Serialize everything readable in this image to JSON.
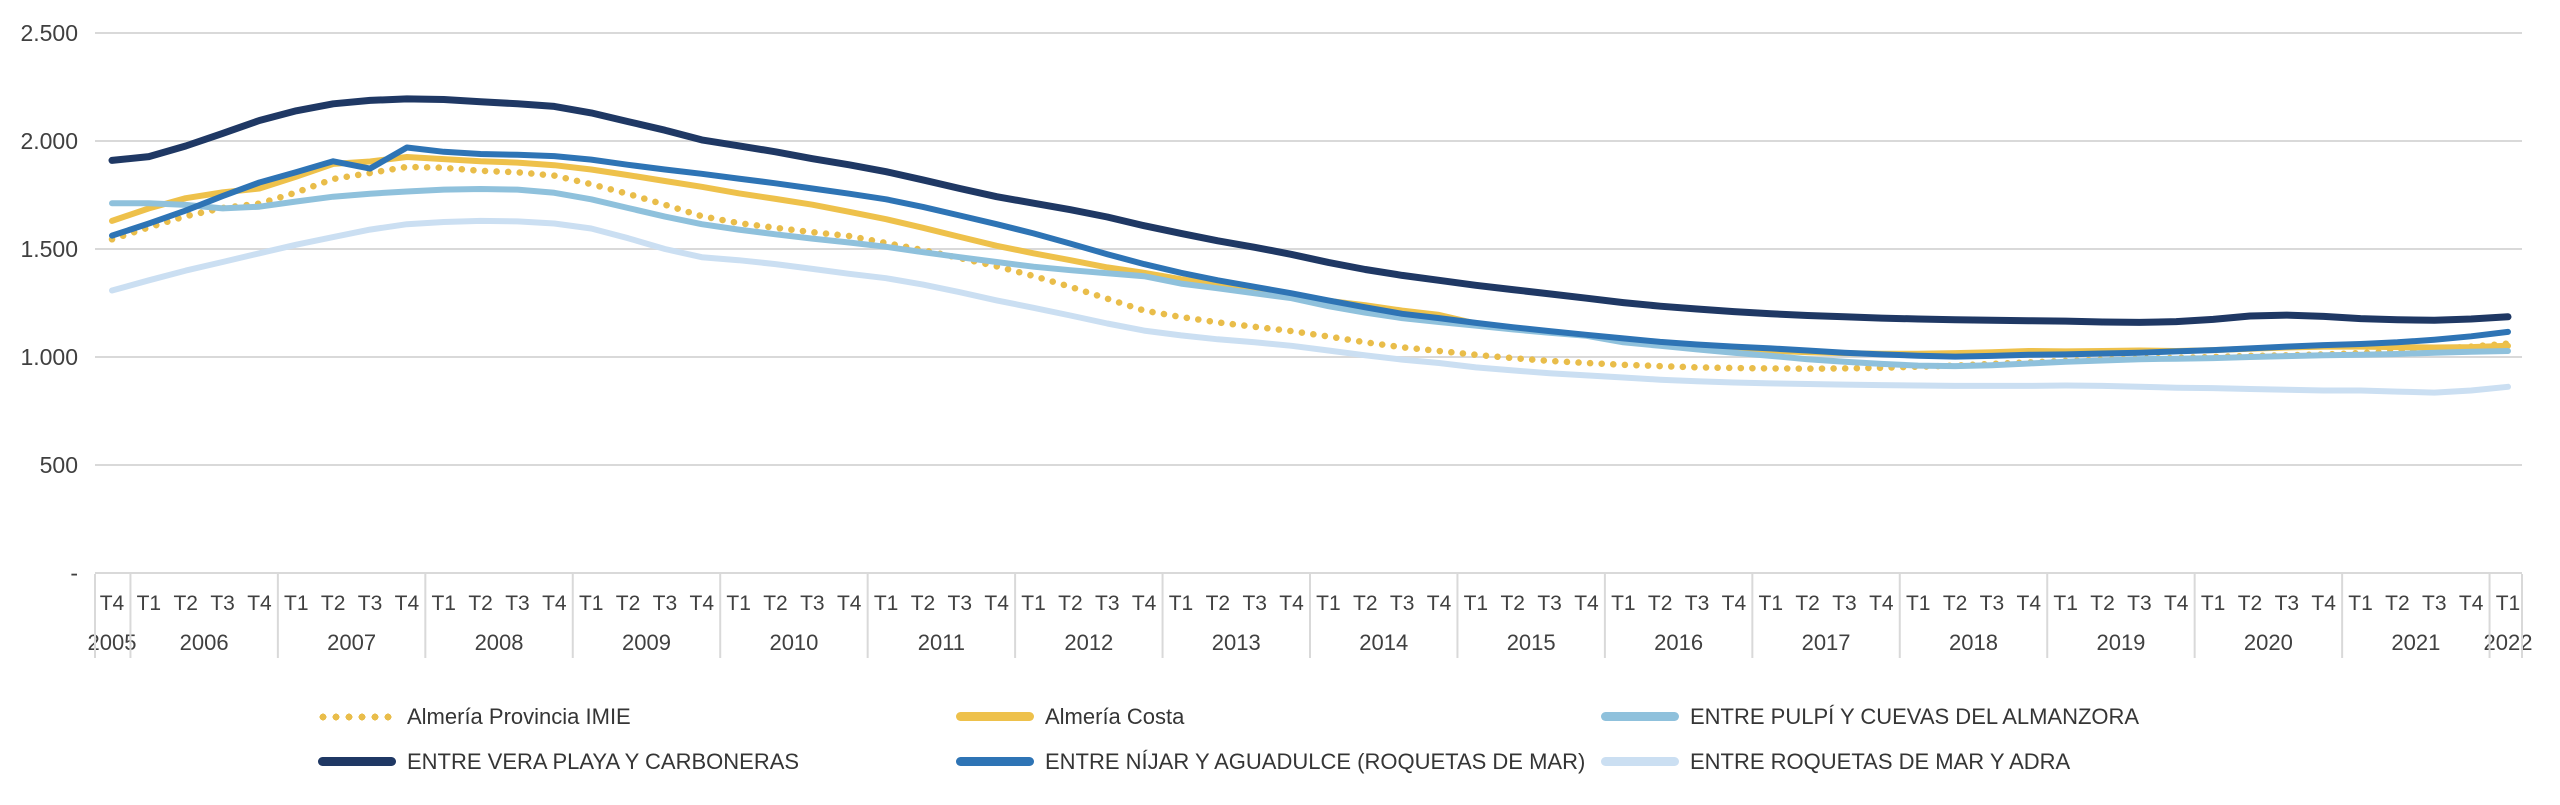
{
  "chart_data": {
    "type": "line",
    "title": "",
    "xlabel": "",
    "ylabel": "",
    "ylim": [
      0,
      2500
    ],
    "grid": true,
    "legend_position": "bottom",
    "yticks": [
      {
        "value": 2500,
        "label": "2.500"
      },
      {
        "value": 2000,
        "label": "2.000"
      },
      {
        "value": 1500,
        "label": "1.500"
      },
      {
        "value": 1000,
        "label": "1.000"
      },
      {
        "value": 500,
        "label": "500"
      },
      {
        "value": 0,
        "label": "-"
      }
    ],
    "x_quarters": [
      "T4",
      "T1",
      "T2",
      "T3",
      "T4",
      "T1",
      "T2",
      "T3",
      "T4",
      "T1",
      "T2",
      "T3",
      "T4",
      "T1",
      "T2",
      "T3",
      "T4",
      "T1",
      "T2",
      "T3",
      "T4",
      "T1",
      "T2",
      "T3",
      "T4",
      "T1",
      "T2",
      "T3",
      "T4",
      "T1",
      "T2",
      "T3",
      "T4",
      "T1",
      "T2",
      "T3",
      "T4",
      "T1",
      "T2",
      "T3",
      "T4",
      "T1",
      "T2",
      "T3",
      "T4",
      "T1",
      "T2",
      "T3",
      "T4",
      "T1",
      "T2",
      "T3",
      "T4",
      "T1",
      "T2",
      "T3",
      "T4",
      "T1",
      "T2",
      "T3",
      "T4",
      "T1",
      "T2",
      "T3",
      "T4",
      "T1"
    ],
    "x_years": [
      {
        "label": "2005",
        "span": 1
      },
      {
        "label": "2006",
        "span": 4
      },
      {
        "label": "2007",
        "span": 4
      },
      {
        "label": "2008",
        "span": 4
      },
      {
        "label": "2009",
        "span": 4
      },
      {
        "label": "2010",
        "span": 4
      },
      {
        "label": "2011",
        "span": 4
      },
      {
        "label": "2012",
        "span": 4
      },
      {
        "label": "2013",
        "span": 4
      },
      {
        "label": "2014",
        "span": 4
      },
      {
        "label": "2015",
        "span": 4
      },
      {
        "label": "2016",
        "span": 4
      },
      {
        "label": "2017",
        "span": 4
      },
      {
        "label": "2018",
        "span": 4
      },
      {
        "label": "2019",
        "span": 4
      },
      {
        "label": "2020",
        "span": 4
      },
      {
        "label": "2021",
        "span": 4
      },
      {
        "label": "2022",
        "span": 1
      }
    ],
    "series": [
      {
        "name": "Almería Provincia IMIE",
        "color": "#e9bd4a",
        "style": "dotted",
        "values": [
          1545,
          1600,
          1652,
          1690,
          1710,
          1762,
          1824,
          1852,
          1880,
          1876,
          1862,
          1855,
          1840,
          1800,
          1755,
          1705,
          1652,
          1620,
          1598,
          1578,
          1560,
          1528,
          1495,
          1458,
          1420,
          1375,
          1325,
          1270,
          1215,
          1185,
          1160,
          1140,
          1120,
          1095,
          1068,
          1045,
          1028,
          1010,
          995,
          982,
          972,
          964,
          958,
          952,
          949,
          947,
          946,
          947,
          950,
          955,
          960,
          968,
          975,
          982,
          988,
          992,
          996,
          1000,
          1005,
          1008,
          1012,
          1018,
          1026,
          1036,
          1048,
          1062
        ]
      },
      {
        "name": "Almería Costa",
        "color": "#eec14b",
        "style": "solid",
        "values": [
          1630,
          1688,
          1735,
          1762,
          1780,
          1835,
          1894,
          1905,
          1926,
          1916,
          1906,
          1900,
          1888,
          1868,
          1842,
          1815,
          1788,
          1758,
          1732,
          1705,
          1672,
          1638,
          1598,
          1556,
          1515,
          1480,
          1448,
          1415,
          1390,
          1360,
          1335,
          1308,
          1285,
          1260,
          1240,
          1215,
          1195,
          1155,
          1135,
          1118,
          1100,
          1078,
          1062,
          1048,
          1038,
          1030,
          1022,
          1018,
          1015,
          1015,
          1018,
          1022,
          1028,
          1026,
          1028,
          1030,
          1028,
          1032,
          1038,
          1044,
          1048,
          1048,
          1046,
          1044,
          1046,
          1052
        ]
      },
      {
        "name": "ENTRE PULPÍ Y CUEVAS DEL ALMANZORA",
        "color": "#8fc1dc",
        "style": "solid",
        "values": [
          1712,
          1712,
          1704,
          1688,
          1696,
          1720,
          1742,
          1756,
          1766,
          1775,
          1778,
          1775,
          1760,
          1730,
          1690,
          1650,
          1615,
          1590,
          1568,
          1548,
          1530,
          1510,
          1485,
          1462,
          1440,
          1418,
          1402,
          1388,
          1374,
          1340,
          1318,
          1295,
          1272,
          1235,
          1205,
          1180,
          1162,
          1145,
          1128,
          1112,
          1098,
          1068,
          1052,
          1035,
          1020,
          1005,
          990,
          978,
          968,
          960,
          958,
          962,
          970,
          978,
          984,
          990,
          992,
          995,
          1000,
          1004,
          1008,
          1010,
          1014,
          1020,
          1024,
          1028
        ]
      },
      {
        "name": "ENTRE VERA PLAYA Y CARBONERAS",
        "color": "#1f3864",
        "style": "solid",
        "values": [
          1910,
          1928,
          1977,
          2035,
          2095,
          2140,
          2172,
          2188,
          2195,
          2192,
          2182,
          2172,
          2160,
          2130,
          2090,
          2050,
          2005,
          1978,
          1950,
          1918,
          1890,
          1858,
          1820,
          1780,
          1742,
          1712,
          1682,
          1648,
          1608,
          1572,
          1538,
          1508,
          1475,
          1438,
          1405,
          1378,
          1355,
          1332,
          1312,
          1292,
          1272,
          1252,
          1235,
          1222,
          1210,
          1200,
          1192,
          1186,
          1180,
          1176,
          1172,
          1170,
          1168,
          1166,
          1162,
          1160,
          1164,
          1174,
          1190,
          1194,
          1188,
          1178,
          1172,
          1170,
          1176,
          1186
        ]
      },
      {
        "name": "ENTRE  NÍJAR Y AGUADULCE (ROQUETAS DE MAR)",
        "color": "#2e74b5",
        "style": "solid",
        "values": [
          1562,
          1618,
          1678,
          1745,
          1808,
          1856,
          1906,
          1872,
          1970,
          1950,
          1940,
          1936,
          1930,
          1914,
          1890,
          1868,
          1848,
          1826,
          1804,
          1780,
          1756,
          1730,
          1695,
          1655,
          1615,
          1572,
          1525,
          1476,
          1430,
          1390,
          1355,
          1325,
          1295,
          1262,
          1230,
          1200,
          1180,
          1158,
          1138,
          1120,
          1103,
          1086,
          1070,
          1058,
          1048,
          1040,
          1030,
          1020,
          1012,
          1006,
          1002,
          1005,
          1010,
          1012,
          1016,
          1020,
          1026,
          1032,
          1040,
          1048,
          1055,
          1060,
          1068,
          1080,
          1096,
          1116
        ]
      },
      {
        "name": "ENTRE ROQUETAS DE MAR Y ADRA",
        "color": "#cbdff2",
        "style": "solid",
        "values": [
          1308,
          1355,
          1400,
          1440,
          1480,
          1520,
          1555,
          1590,
          1615,
          1625,
          1630,
          1628,
          1618,
          1595,
          1550,
          1500,
          1462,
          1448,
          1430,
          1408,
          1385,
          1365,
          1335,
          1300,
          1262,
          1228,
          1192,
          1155,
          1122,
          1100,
          1082,
          1068,
          1052,
          1030,
          1008,
          988,
          972,
          952,
          938,
          925,
          915,
          905,
          895,
          888,
          882,
          878,
          875,
          872,
          870,
          868,
          866,
          866,
          866,
          868,
          866,
          862,
          858,
          856,
          852,
          848,
          845,
          845,
          840,
          835,
          845,
          862
        ]
      }
    ],
    "colors": {
      "grid": "#d9d9d9",
      "axis_text": "#404040"
    }
  },
  "legend": {
    "rows": [
      [
        0,
        1,
        2
      ],
      [
        3,
        4,
        5
      ]
    ]
  }
}
